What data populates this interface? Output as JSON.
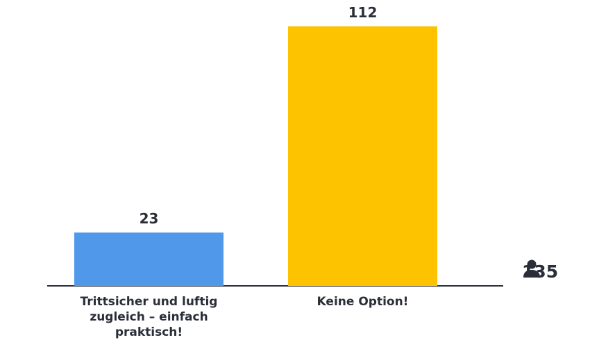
{
  "chart_data": {
    "type": "bar",
    "categories": [
      "Trittsicher und luftig zugleich – einfach praktisch!",
      "Keine Option!"
    ],
    "values": [
      23,
      112
    ],
    "colors": [
      "#4f98ea",
      "#fdc300"
    ],
    "total": 135
  }
}
